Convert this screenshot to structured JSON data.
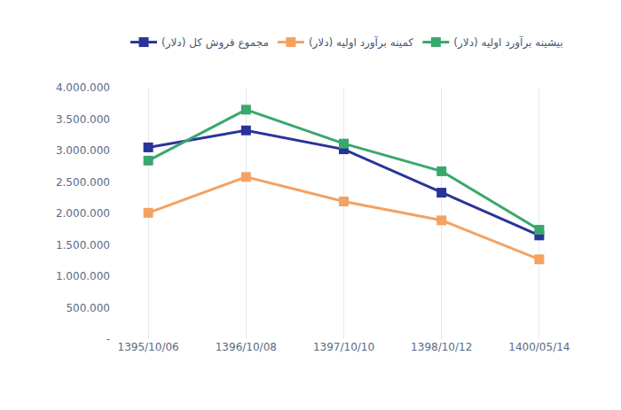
{
  "chart_data": {
    "type": "line",
    "categories": [
      "1395/10/06",
      "1396/10/08",
      "1397/10/10",
      "1398/10/12",
      "1400/05/14"
    ],
    "series": [
      {
        "name": "مجموع فروش کل (دلار)",
        "color": "#28349a",
        "marker": "square",
        "values": [
          3050000,
          3320000,
          3020000,
          2330000,
          1650000
        ]
      },
      {
        "name": "کمینه برآورد اولیه (دلار)",
        "color": "#f4a261",
        "marker": "square",
        "values": [
          2010000,
          2580000,
          2190000,
          1890000,
          1270000
        ]
      },
      {
        "name": "بیشینه برآورد اولیه (دلار)",
        "color": "#3aa76d",
        "marker": "square",
        "values": [
          2840000,
          3650000,
          3110000,
          2670000,
          1740000
        ]
      }
    ],
    "ylim": [
      0,
      4000000
    ],
    "yticks": [
      {
        "value": 0,
        "label": "-"
      },
      {
        "value": 500000,
        "label": "500.000"
      },
      {
        "value": 1000000,
        "label": "1.000.000"
      },
      {
        "value": 1500000,
        "label": "1.500.000"
      },
      {
        "value": 2000000,
        "label": "2.000.000"
      },
      {
        "value": 2500000,
        "label": "2.500.000"
      },
      {
        "value": 3000000,
        "label": "3.000.000"
      },
      {
        "value": 3500000,
        "label": "3.500.000"
      },
      {
        "value": 4000000,
        "label": "4.000.000"
      }
    ],
    "grid": "x",
    "legend": "top"
  }
}
